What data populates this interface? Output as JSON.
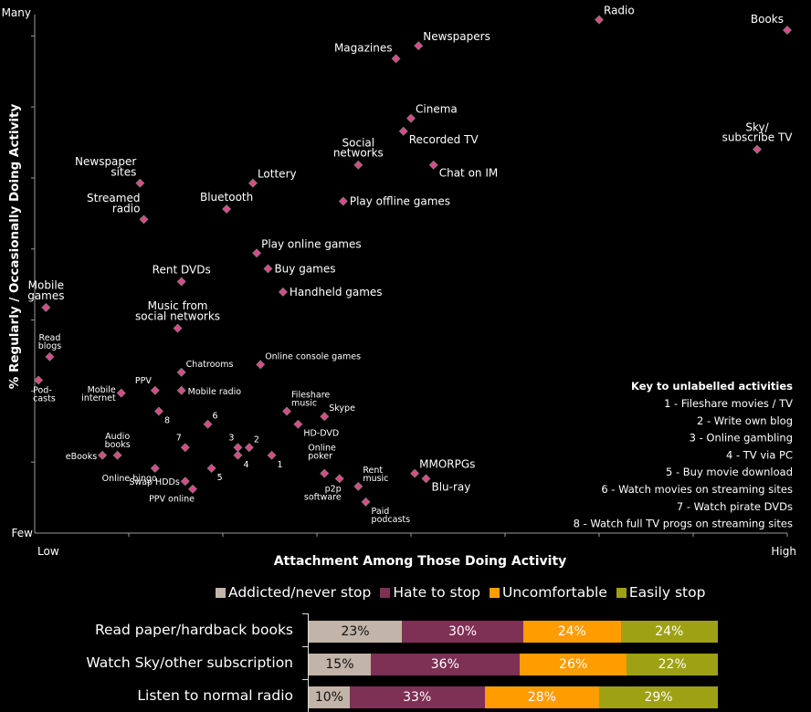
{
  "chart_data": [
    {
      "type": "scatter",
      "title": "",
      "xlabel": "Attachment Among Those Doing Activity",
      "ylabel": "% Regularly / Occasionally Doing Activity",
      "x_tick_labels": {
        "min": "Low",
        "max": "High"
      },
      "y_tick_labels": {
        "min": "Few",
        "max": "Many"
      },
      "xlim": [
        0,
        100
      ],
      "ylim": [
        0,
        100
      ],
      "marker_color": "#e0458e",
      "points": [
        {
          "label": "Radio",
          "x": 75,
          "y": 99,
          "anchor": "right-top"
        },
        {
          "label": "Books",
          "x": 100,
          "y": 97,
          "anchor": "left-top"
        },
        {
          "label": "Newspapers",
          "x": 51,
          "y": 94,
          "anchor": "right-top"
        },
        {
          "label": "Magazines",
          "x": 48,
          "y": 91.5,
          "anchor": "left-top"
        },
        {
          "label": "Cinema",
          "x": 50,
          "y": 80,
          "anchor": "right-top"
        },
        {
          "label": "Recorded TV",
          "x": 49,
          "y": 77.5,
          "anchor": "right-bottom"
        },
        {
          "label": "Sky/\nsubscribe TV",
          "x": 96,
          "y": 74,
          "anchor": "center-top"
        },
        {
          "label": "Social\nnetworks",
          "x": 43,
          "y": 71,
          "anchor": "center-top"
        },
        {
          "label": "Chat on IM",
          "x": 53,
          "y": 71,
          "anchor": "right-bottom"
        },
        {
          "label": "Newspaper\nsites",
          "x": 14,
          "y": 67.5,
          "anchor": "left-top"
        },
        {
          "label": "Lottery",
          "x": 29,
          "y": 67.5,
          "anchor": "right-top"
        },
        {
          "label": "Play offline games",
          "x": 41,
          "y": 64,
          "anchor": "right"
        },
        {
          "label": "Bluetooth",
          "x": 25.5,
          "y": 62.5,
          "anchor": "center-top"
        },
        {
          "label": "Streamed\nradio",
          "x": 14.5,
          "y": 60.5,
          "anchor": "left-top"
        },
        {
          "label": "Play online games",
          "x": 29.5,
          "y": 54,
          "anchor": "right-top"
        },
        {
          "label": "Buy games",
          "x": 31,
          "y": 51,
          "anchor": "right"
        },
        {
          "label": "Rent DVDs",
          "x": 19.5,
          "y": 48.5,
          "anchor": "center-top"
        },
        {
          "label": "Handheld games",
          "x": 33,
          "y": 46.5,
          "anchor": "right"
        },
        {
          "label": "Mobile\ngames",
          "x": 1.5,
          "y": 43.5,
          "anchor": "center-top"
        },
        {
          "label": "Music from\nsocial networks",
          "x": 19,
          "y": 39.5,
          "anchor": "center-top"
        },
        {
          "label": "Read\nblogs",
          "x": 2,
          "y": 34,
          "anchor": "center-top"
        },
        {
          "label": "Online console games",
          "x": 30,
          "y": 32.5,
          "anchor": "right-top"
        },
        {
          "label": "Chatrooms",
          "x": 19.5,
          "y": 31,
          "anchor": "right-top"
        },
        {
          "label": "Pod-\ncasts",
          "x": 0.5,
          "y": 29.5,
          "anchor": "below-left"
        },
        {
          "label": "PPV",
          "x": 16,
          "y": 27.5,
          "anchor": "left-top"
        },
        {
          "label": "Mobile radio",
          "x": 19.5,
          "y": 27.5,
          "anchor": "right"
        },
        {
          "label": "Mobile\ninternet",
          "x": 11.5,
          "y": 27,
          "anchor": "left"
        },
        {
          "label": "Fileshare\nmusic",
          "x": 33.5,
          "y": 23.5,
          "anchor": "right-top"
        },
        {
          "label": "8",
          "x": 16.5,
          "y": 23.5,
          "anchor": "right-bottom"
        },
        {
          "label": "Skype",
          "x": 38.5,
          "y": 22.5,
          "anchor": "right-top"
        },
        {
          "label": "HD-DVD",
          "x": 35,
          "y": 21,
          "anchor": "right-bottom"
        },
        {
          "label": "6",
          "x": 23,
          "y": 21,
          "anchor": "right-top"
        },
        {
          "label": "7",
          "x": 20,
          "y": 16.5,
          "anchor": "left-top"
        },
        {
          "label": "3",
          "x": 27,
          "y": 16.5,
          "anchor": "left-top"
        },
        {
          "label": "2",
          "x": 28.5,
          "y": 16.5,
          "anchor": "right-top"
        },
        {
          "label": "4",
          "x": 27,
          "y": 15,
          "anchor": "right-bottom"
        },
        {
          "label": "1",
          "x": 31.5,
          "y": 15,
          "anchor": "right-bottom"
        },
        {
          "label": "eBooks",
          "x": 9,
          "y": 15,
          "anchor": "left"
        },
        {
          "label": "Audio\nbooks",
          "x": 11,
          "y": 15,
          "anchor": "center-top"
        },
        {
          "label": "Online bingo",
          "x": 16,
          "y": 12.5,
          "anchor": "below-left"
        },
        {
          "label": "5",
          "x": 23.5,
          "y": 12.5,
          "anchor": "right-bottom"
        },
        {
          "label": "Online\npoker",
          "x": 38.5,
          "y": 11.5,
          "anchor": "left-top-above"
        },
        {
          "label": "p2p\nsoftware",
          "x": 40.5,
          "y": 10.5,
          "anchor": "below-left"
        },
        {
          "label": "MMORPGs",
          "x": 50.5,
          "y": 11.5,
          "anchor": "right-top"
        },
        {
          "label": "Rent\nmusic",
          "x": 43,
          "y": 9,
          "anchor": "right-top"
        },
        {
          "label": "Blu-ray",
          "x": 52,
          "y": 10.5,
          "anchor": "right-bottom"
        },
        {
          "label": "Swap HDDs",
          "x": 20,
          "y": 10,
          "anchor": "left"
        },
        {
          "label": "PPV online",
          "x": 21,
          "y": 8.5,
          "anchor": "below-left"
        },
        {
          "label": "Paid\npodcasts",
          "x": 44,
          "y": 6,
          "anchor": "right-bottom"
        }
      ],
      "key": {
        "title": "Key to unlabelled activities",
        "items": [
          "1 - Fileshare movies / TV",
          "2 - Write own blog",
          "3 - Online gambling",
          "4 - TV via PC",
          "5 - Buy movie download",
          "6 - Watch movies on streaming sites",
          "7 - Watch pirate DVDs",
          "8 - Watch full TV progs on streaming sites"
        ]
      }
    },
    {
      "type": "bar",
      "orientation": "horizontal-stacked-100",
      "categories": [
        "Read paper/hardback books",
        "Watch Sky/other subscription",
        "Listen to normal radio"
      ],
      "legend_position": "top",
      "series": [
        {
          "name": "Addicted/never stop",
          "color": "#c2b4a8",
          "text_color": "#111111",
          "values": [
            23,
            15,
            10
          ]
        },
        {
          "name": "Hate to stop",
          "color": "#7e3055",
          "text_color": "#ffffff",
          "values": [
            30,
            36,
            33
          ]
        },
        {
          "name": "Uncomfortable",
          "color": "#ff9c00",
          "text_color": "#ffffff",
          "values": [
            24,
            26,
            28
          ]
        },
        {
          "name": "Easily stop",
          "color": "#9ea114",
          "text_color": "#ffffff",
          "values": [
            24,
            22,
            29
          ]
        }
      ],
      "value_suffix": "%"
    }
  ]
}
